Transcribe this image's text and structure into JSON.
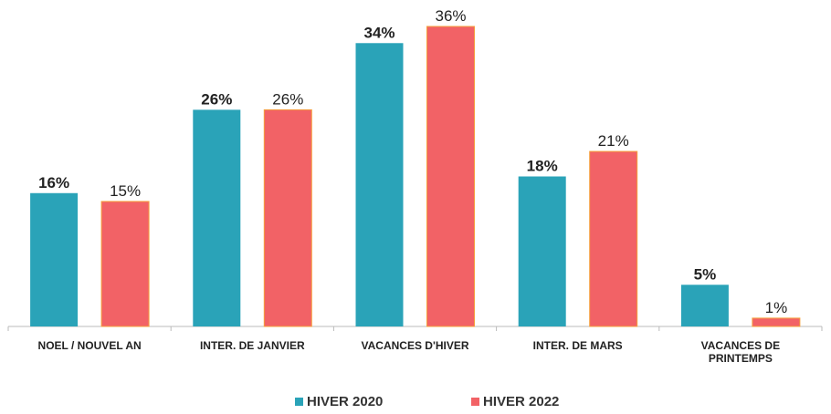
{
  "chart_data": {
    "type": "bar",
    "categories": [
      "NOEL / NOUVEL AN",
      "INTER. DE JANVIER",
      "VACANCES D'HIVER",
      "INTER. DE MARS",
      "VACANCES DE PRINTEMPS"
    ],
    "series": [
      {
        "name": "HIVER 2020",
        "color": "#2aa3b8",
        "values": [
          16,
          26,
          34,
          18,
          5
        ],
        "value_labels": [
          "16%",
          "26%",
          "34%",
          "18%",
          "5%"
        ]
      },
      {
        "name": "HIVER 2022",
        "color": "#f26266",
        "values": [
          15,
          26,
          36,
          21,
          1
        ],
        "value_labels": [
          "15%",
          "26%",
          "36%",
          "21%",
          "1%"
        ]
      }
    ],
    "legend": "bottom"
  }
}
